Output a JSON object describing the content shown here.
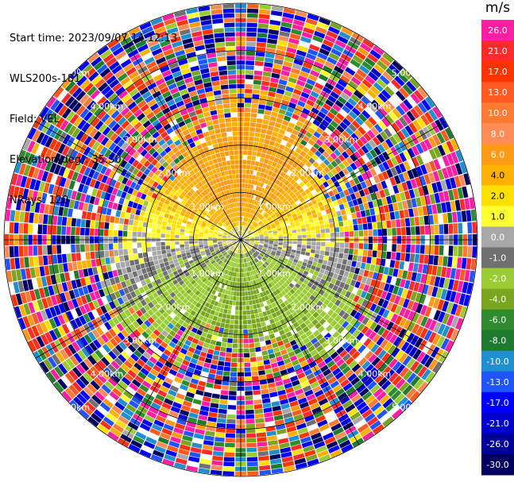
{
  "header": {
    "start_time": "Start time: 2023/09/07 14:12:13",
    "instrument": "WLS200s-181",
    "field": "Field: VEL",
    "elevation": "Elevation(deg): 35.30",
    "nrays": "NRays: 120"
  },
  "chart_data": {
    "type": "ppi",
    "field": "VEL",
    "unit": "m/s",
    "n_rays": 120,
    "range_ring_labels": [
      "1.00km",
      "2.00km",
      "3.00km",
      "4.00km",
      "5.00km"
    ],
    "range_rings_km": [
      1,
      2,
      3,
      4,
      5
    ],
    "max_range_km": 5.0,
    "colorbar": {
      "title": "m/s",
      "tick_labels": [
        "26.0",
        "21.0",
        "17.0",
        "13.0",
        "10.0",
        "8.0",
        "6.0",
        "4.0",
        "2.0",
        "1.0",
        "0.0",
        "-1.0",
        "-2.0",
        "-4.0",
        "-6.0",
        "-8.0",
        "-10.0",
        "-13.0",
        "-17.0",
        "-21.0",
        "-26.0",
        "-30.0"
      ],
      "colors": [
        "#ff1fa5",
        "#ff2b2b",
        "#ff3300",
        "#ff5a1f",
        "#ff7a33",
        "#ff8c55",
        "#ff9a14",
        "#ffb000",
        "#ffe000",
        "#ffff33",
        "#a8a8a8",
        "#707070",
        "#9ccc33",
        "#7aa520",
        "#2e8b2e",
        "#1e7a2e",
        "#1f8fd0",
        "#1f55ff",
        "#0000ff",
        "#0000cc",
        "#000099",
        "#00005e"
      ]
    },
    "near_field": {
      "north_half": "positive (1–6 m/s, yellow/orange)",
      "south_half": "negative (-2 to -8 m/s, green)",
      "zero_band": "near 0 m/s along east–west axis (gray)"
    }
  }
}
